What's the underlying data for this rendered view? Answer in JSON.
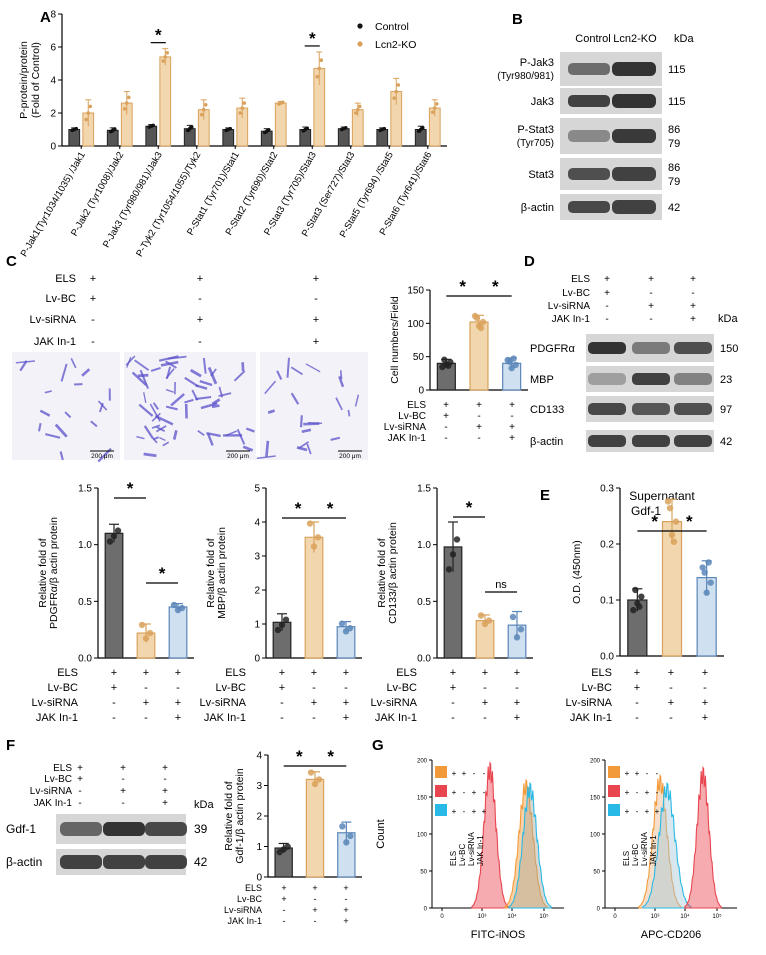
{
  "panels": {
    "A": "A",
    "B": "B",
    "C": "C",
    "D": "D",
    "E": "E",
    "F": "F",
    "G": "G"
  },
  "colors": {
    "control": "#3a3a3a",
    "ko": "#f2d6ad",
    "ko_edge": "#d9a25c",
    "grey_bar": "#6d6d6d",
    "blue_bar": "#cfe0f0",
    "blue_edge": "#5b86b8",
    "stain": "#5a50c9",
    "hist_orange": "#f29a3a",
    "hist_red": "#e8454f",
    "hist_cyan": "#29b9e6"
  },
  "panelA": {
    "ylabel": "P-protein/protein (Fold of Control)",
    "legend": [
      "Control",
      "Lcn2-KO"
    ],
    "chart_data": {
      "type": "bar",
      "categories": [
        "P-Jak1(Tyr1034/1035) /Jak1",
        "P-Jak2 (Tyr1008)/Jak2",
        "P-Jak3 (Tyr980/981)/Jak3",
        "P-Tyk2 (Tyr1054/1055)/Tyk2",
        "P-Stat1 (Tyr701)/Stat1",
        "P-Stat2 (Tyr690)/Stat2",
        "P-Stat3 (Tyr705)/Stat3",
        "P-Stat3 (Ser727)/Stat3",
        "P-Stat5 (Tyr694) /Stat5",
        "P-Stat6 (Tyr641)/Stat6"
      ],
      "series": [
        {
          "name": "Control",
          "values": [
            1.0,
            0.95,
            1.2,
            1.05,
            1.0,
            0.9,
            1.0,
            1.05,
            1.0,
            1.0
          ]
        },
        {
          "name": "Lcn2-KO",
          "values": [
            2.0,
            2.6,
            5.4,
            2.2,
            2.3,
            2.6,
            4.7,
            2.2,
            3.3,
            2.3
          ]
        }
      ],
      "errors": {
        "Control": [
          0.1,
          0.15,
          0.1,
          0.2,
          0.1,
          0.15,
          0.15,
          0.1,
          0.1,
          0.2
        ],
        "Lcn2-KO": [
          0.8,
          0.7,
          0.5,
          0.6,
          0.6,
          0.1,
          1.0,
          0.4,
          0.8,
          0.5
        ]
      },
      "ylim": [
        0,
        8
      ],
      "yticks": [
        "0",
        "2",
        "4",
        "6",
        "8"
      ],
      "significant": [
        2,
        6
      ]
    }
  },
  "panelB": {
    "col_labels": [
      "Control",
      "Lcn2-KO"
    ],
    "kda_header": "kDa",
    "rows": [
      {
        "label": "P-Jak3",
        "sub": "(Tyr980/981)",
        "kda": "115"
      },
      {
        "label": "Jak3",
        "sub": "",
        "kda": "115"
      },
      {
        "label": "P-Stat3",
        "sub": "(Tyr705)",
        "kda": "86\n79"
      },
      {
        "label": "Stat3",
        "sub": "",
        "kda": "86\n79"
      },
      {
        "label": "β-actin",
        "sub": "",
        "kda": "42"
      }
    ]
  },
  "conditions": {
    "ELS": [
      "+",
      "+",
      "+"
    ],
    "Lv-BC": [
      "+",
      "-",
      "-"
    ],
    "Lv-siRNA": [
      "-",
      "+",
      "+"
    ],
    "JAK In-1": [
      "-",
      "-",
      "+"
    ]
  },
  "condition_labels": [
    "ELS",
    "Lv-BC",
    "Lv-siRNA",
    "JAK In-1"
  ],
  "scale_bar": "200 μm",
  "panelC_count": {
    "ylabel": "Cell numbers/Field",
    "chart_data": {
      "type": "bar",
      "categories": [
        "Lv-BC",
        "Lv-siRNA",
        "Lv-siRNA + JAK In-1"
      ],
      "values": [
        40,
        102,
        40
      ],
      "errors": [
        6,
        10,
        8
      ],
      "ylim": [
        0,
        150
      ],
      "yticks": [
        "0",
        "50",
        "100",
        "150"
      ]
    },
    "sig": [
      "*",
      "*"
    ]
  },
  "panelC_pdgfr": {
    "ylabel": "Relative fold of PDGFRα/β actin protein",
    "chart_data": {
      "type": "bar",
      "values": [
        1.1,
        0.22,
        0.45
      ],
      "errors": [
        0.08,
        0.08,
        0.03
      ],
      "ylim": [
        0,
        1.5
      ],
      "yticks": [
        "0.0",
        "0.5",
        "1.0",
        "1.5"
      ]
    },
    "sig": [
      "*",
      "*"
    ]
  },
  "panelC_mbp": {
    "ylabel": "Relative fold of MBP/β actin protein",
    "chart_data": {
      "type": "bar",
      "values": [
        1.05,
        3.55,
        0.92
      ],
      "errors": [
        0.25,
        0.45,
        0.15
      ],
      "ylim": [
        0,
        5
      ],
      "yticks": [
        "0",
        "1",
        "2",
        "3",
        "4",
        "5"
      ]
    },
    "sig": [
      "*",
      "*"
    ]
  },
  "panelC_cd133": {
    "ylabel": "Relative fold of CD133/β actin protein",
    "chart_data": {
      "type": "bar",
      "values": [
        0.98,
        0.33,
        0.29
      ],
      "errors": [
        0.22,
        0.05,
        0.12
      ],
      "ylim": [
        0,
        1.5
      ],
      "yticks": [
        "0.0",
        "0.5",
        "1.0",
        "1.5"
      ]
    },
    "sig": [
      "*",
      "ns"
    ]
  },
  "panelD": {
    "kda_header": "kDa",
    "rows": [
      {
        "label": "PDGFRα",
        "kda": "150"
      },
      {
        "label": "MBP",
        "kda": "23"
      },
      {
        "label": "CD133",
        "kda": "97"
      },
      {
        "label": "β-actin",
        "kda": "42"
      }
    ]
  },
  "panelE": {
    "title": "Supernatant",
    "subtitle": "Gdf-1",
    "ylabel": "O.D. (450nm)",
    "chart_data": {
      "type": "bar",
      "values": [
        0.1,
        0.24,
        0.14
      ],
      "errors": [
        0.02,
        0.04,
        0.03
      ],
      "ylim": [
        0,
        0.3
      ],
      "yticks": [
        "0.0",
        "0.1",
        "0.2",
        "0.3"
      ]
    },
    "sig": [
      "*",
      "*"
    ]
  },
  "panelF": {
    "kda_header": "kDa",
    "rows": [
      {
        "label": "Gdf-1",
        "kda": "39"
      },
      {
        "label": "β-actin",
        "kda": "42"
      }
    ],
    "ylabel": "Relative fold of Gdf-1/β actin protein",
    "chart_data": {
      "type": "bar",
      "values": [
        0.95,
        3.2,
        1.45
      ],
      "errors": [
        0.15,
        0.25,
        0.35
      ],
      "ylim": [
        0,
        4
      ],
      "yticks": [
        "0",
        "1",
        "2",
        "3",
        "4"
      ]
    },
    "sig": [
      "*",
      "*"
    ]
  },
  "panelG": {
    "ylabel": "Count",
    "yticks": [
      "0",
      "50",
      "100",
      "150",
      "200"
    ],
    "xticks": [
      "0",
      "10³",
      "10⁴",
      "10⁵"
    ],
    "xticks_left": [
      "0",
      "10³",
      "10⁴",
      "10⁵"
    ],
    "xlabel_left": "FITC-iNOS",
    "xlabel_right": "APC-CD206",
    "legend_rows": [
      {
        "color": "#f29a3a",
        "signs": [
          "+",
          "+",
          "-",
          "-"
        ]
      },
      {
        "color": "#e8454f",
        "signs": [
          "+",
          "-",
          "+",
          "-"
        ]
      },
      {
        "color": "#29b9e6",
        "signs": [
          "+",
          "-",
          "+",
          "+"
        ]
      }
    ],
    "legend_cols": [
      "ELS",
      "Lv-BC",
      "Lv-siRNA",
      "JAK In-1"
    ]
  }
}
